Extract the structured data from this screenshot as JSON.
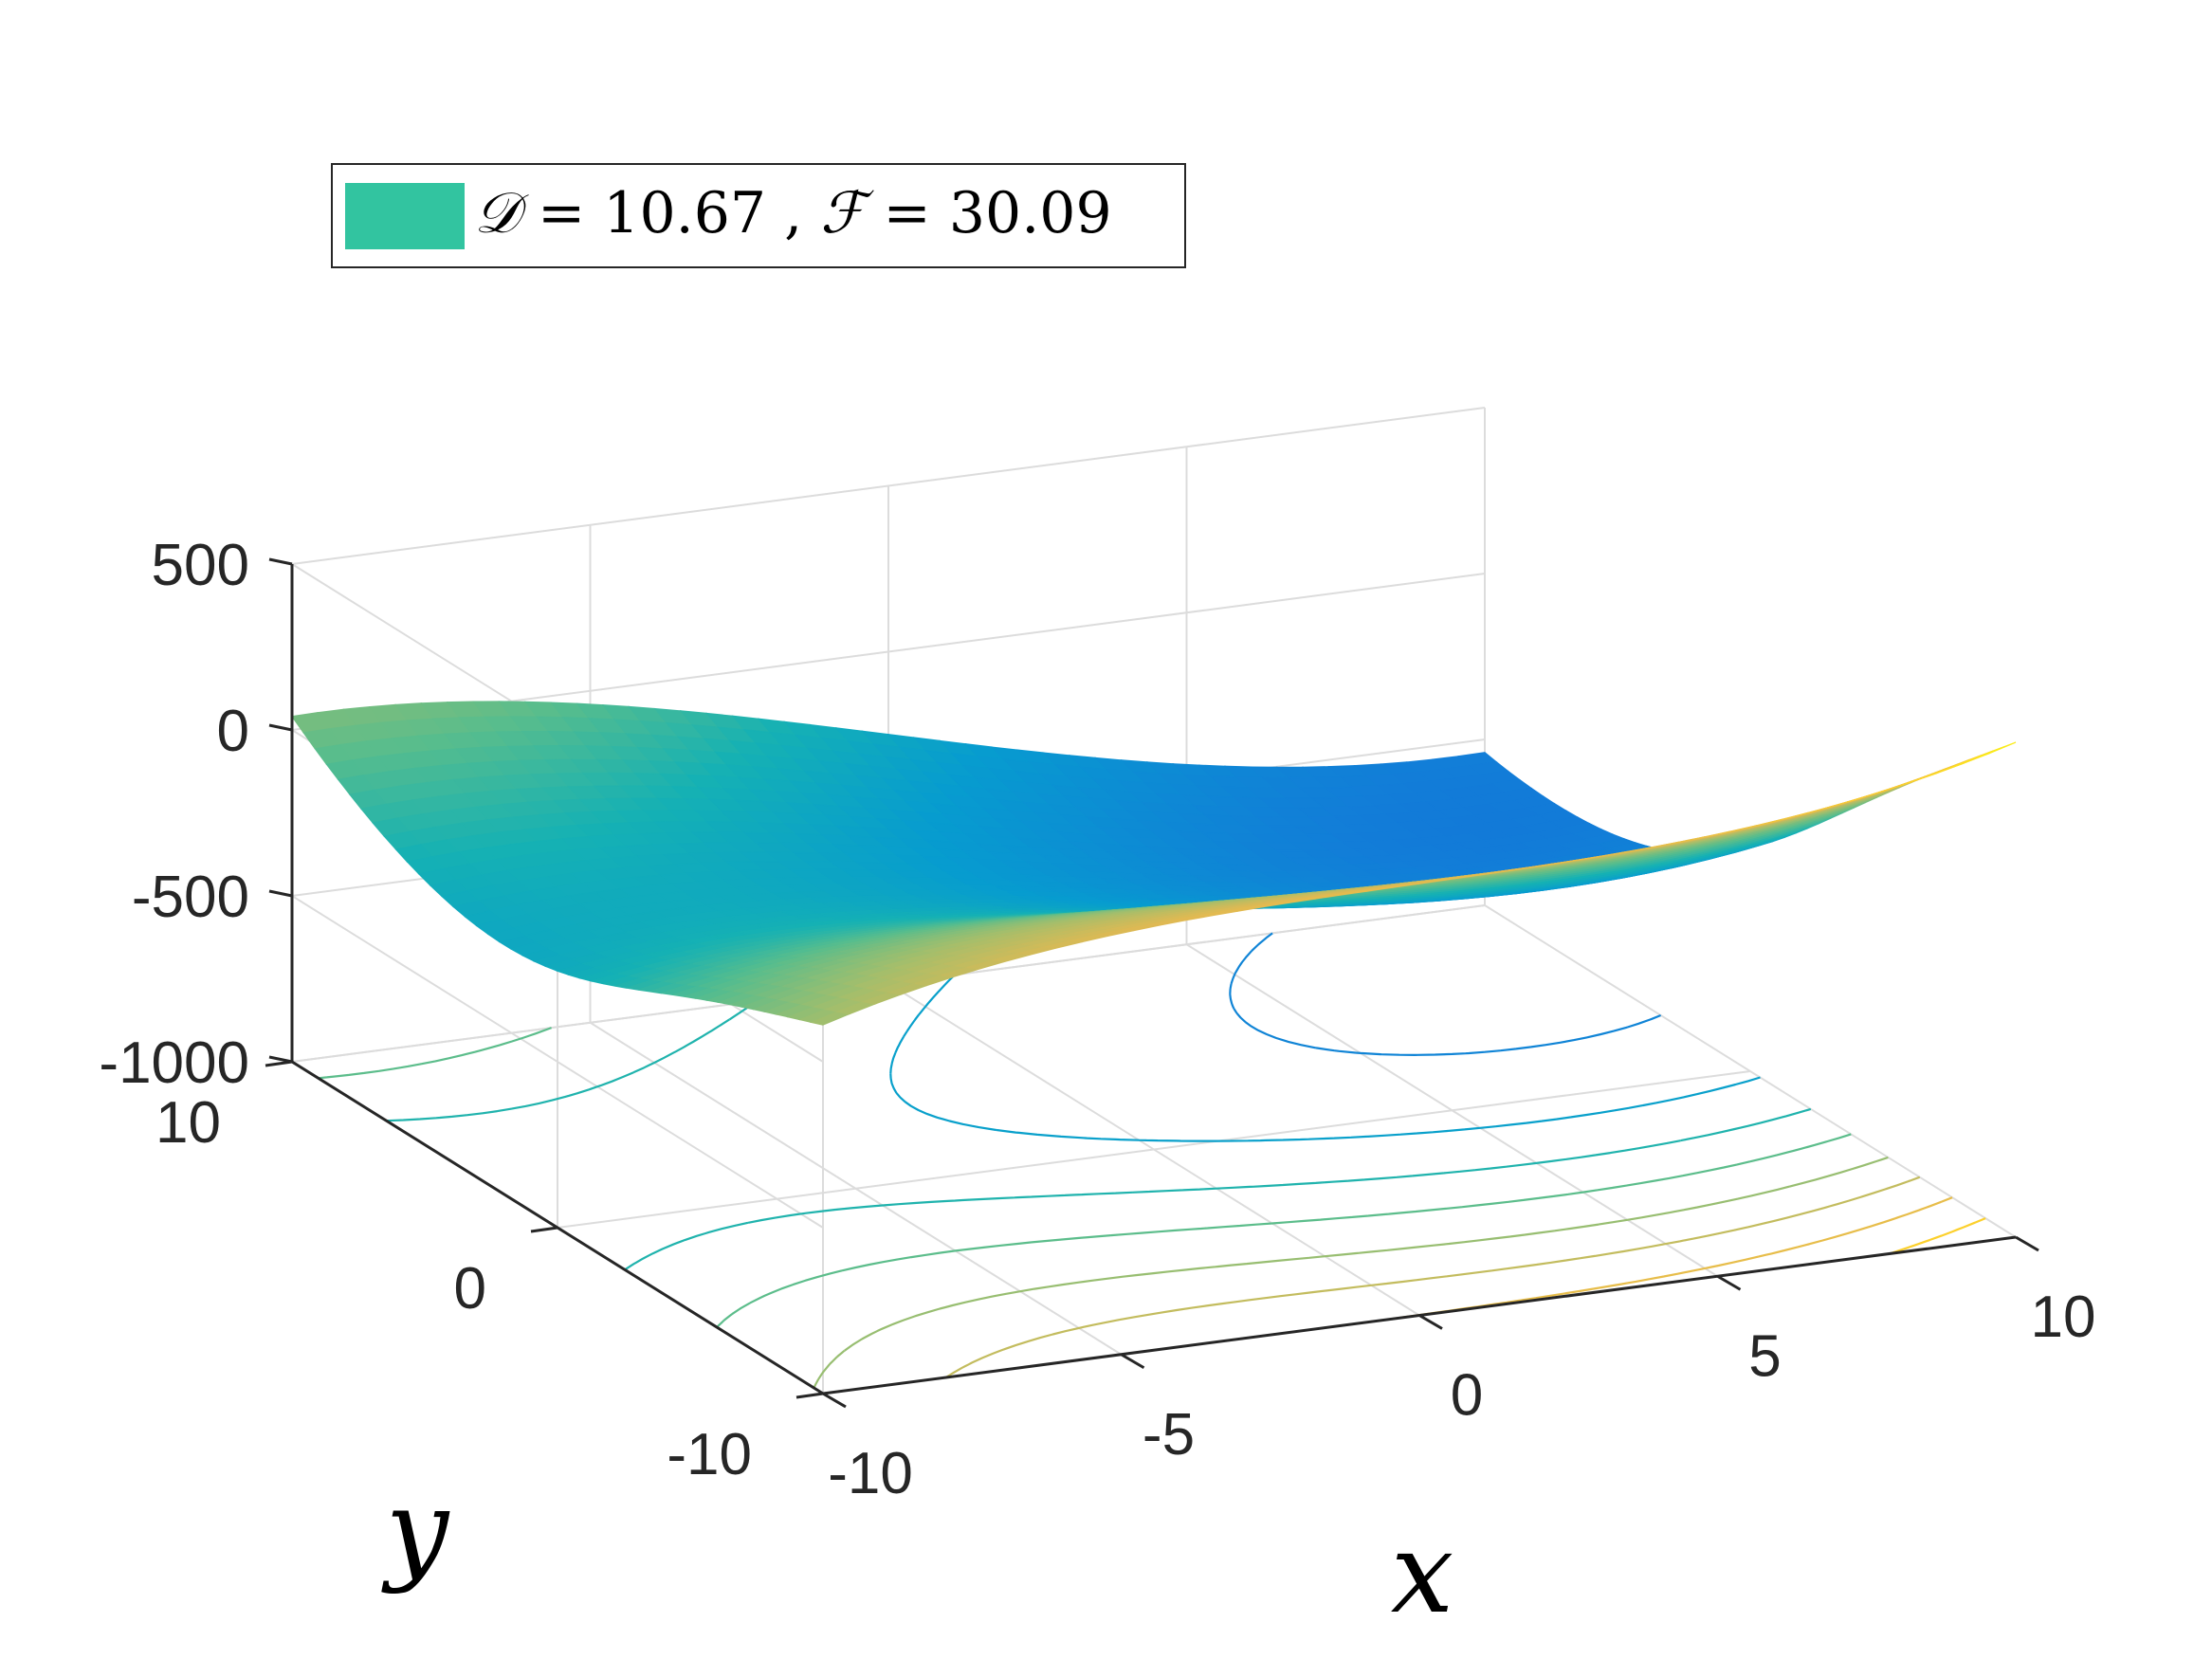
{
  "chart_data": {
    "type": "surface",
    "description_kind": "3d-surface-with-contour",
    "xlabel": "x",
    "ylabel": "y",
    "zlabel": "",
    "x_range": [
      -10,
      10
    ],
    "y_range": [
      -10,
      10
    ],
    "z_range": [
      -1000,
      500
    ],
    "x_ticks": [
      "-10",
      "-5",
      "0",
      "5",
      "10"
    ],
    "y_ticks": [
      "-10",
      "0",
      "10"
    ],
    "z_ticks": [
      "-1000",
      "-500",
      "0",
      "500"
    ],
    "grid": true,
    "colormap": "parula",
    "contour_levels": [
      -900,
      -700,
      -500,
      -300,
      -150,
      -20,
      100,
      200,
      300,
      400
    ],
    "legend": {
      "placement": "top-left",
      "swatch_color": "#32C4A0",
      "entries": [
        {
          "parts": [
            {
              "sym": "𝒟",
              "text": " = 10.67 , "
            },
            {
              "sym": "ℱ",
              "text": " = 30.09"
            }
          ]
        }
      ]
    }
  }
}
